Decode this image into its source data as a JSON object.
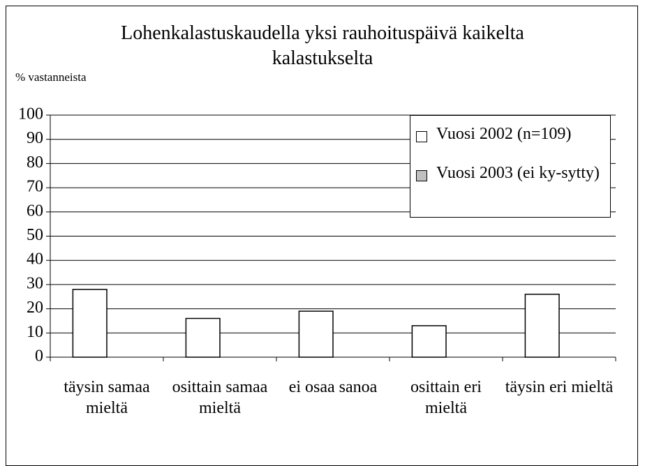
{
  "chart_data": {
    "type": "bar",
    "title": "Lohenkalastuskaudella yksi rauhoituspäivä kaikelta kalastukselta",
    "y_label": "% vastanneista",
    "categories": [
      "täysin samaa mieltä",
      "osittain samaa mieltä",
      "ei osaa sanoa",
      "osittain eri mieltä",
      "täysin eri mieltä"
    ],
    "series": [
      {
        "name": "Vuosi 2002 (n=109)",
        "color": "#ffffff",
        "values": [
          28,
          16,
          19,
          13,
          26
        ]
      },
      {
        "name": "Vuosi 2003 (ei ky-sytty)",
        "color": "#c0c0c0",
        "values": [
          null,
          null,
          null,
          null,
          null
        ]
      }
    ],
    "ylim": [
      0,
      100
    ],
    "yticks": [
      0,
      10,
      20,
      30,
      40,
      50,
      60,
      70,
      80,
      90,
      100
    ],
    "grid": true,
    "legend": "upper right"
  }
}
